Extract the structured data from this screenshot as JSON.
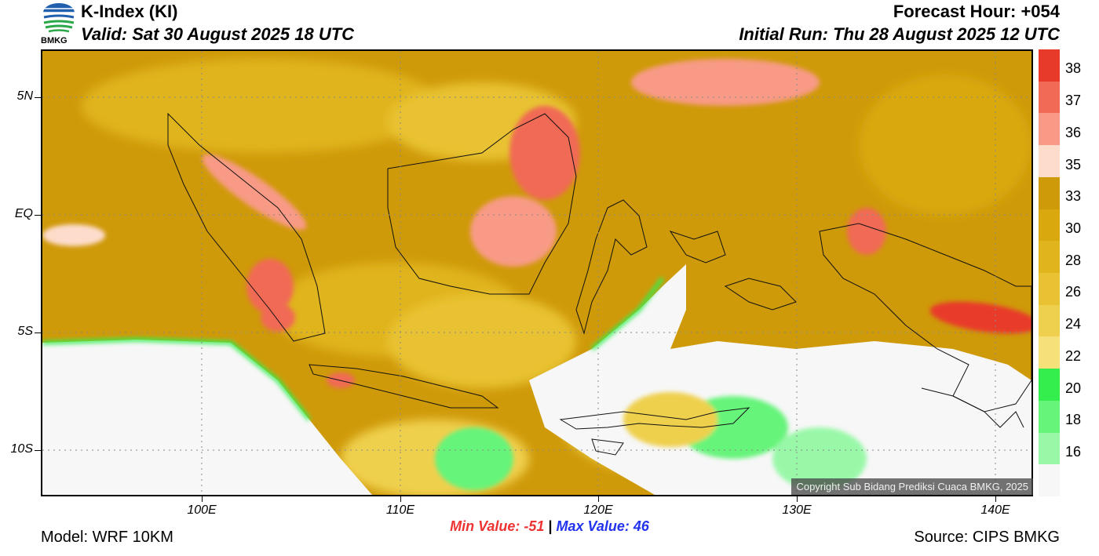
{
  "header": {
    "title": "K-Index (KI)",
    "valid": "Valid: Sat 30 August 2025 18 UTC",
    "forecast_hour": "Forecast Hour: +054",
    "initial_run": "Initial Run: Thu 28 August 2025 12 UTC",
    "logo_text": "BMKG"
  },
  "map": {
    "lat_labels": [
      "5N",
      "EQ",
      "5S",
      "10S"
    ],
    "lon_labels": [
      "100E",
      "110E",
      "120E",
      "130E",
      "140E"
    ],
    "copyright": "Copyright Sub Bidang Prediksi Cuaca BMKG, 2025"
  },
  "colorbar": {
    "labels": [
      "38",
      "37",
      "36",
      "35",
      "33",
      "30",
      "28",
      "26",
      "24",
      "22",
      "20",
      "18",
      "16"
    ],
    "colors": [
      "#e83a2a",
      "#f06a55",
      "#f89a85",
      "#fddccc",
      "#cf9a0a",
      "#d8a80e",
      "#e0b41c",
      "#e8c232",
      "#efd04e",
      "#f6e07a",
      "#33ee4d",
      "#66f47a",
      "#99f8a8",
      "#f7f7f7"
    ]
  },
  "stats": {
    "min": "Min Value: -51",
    "separator": "|",
    "max": "Max Value:  46"
  },
  "footer": {
    "model": "Model: WRF 10KM",
    "source": "Source: CIPS BMKG"
  }
}
